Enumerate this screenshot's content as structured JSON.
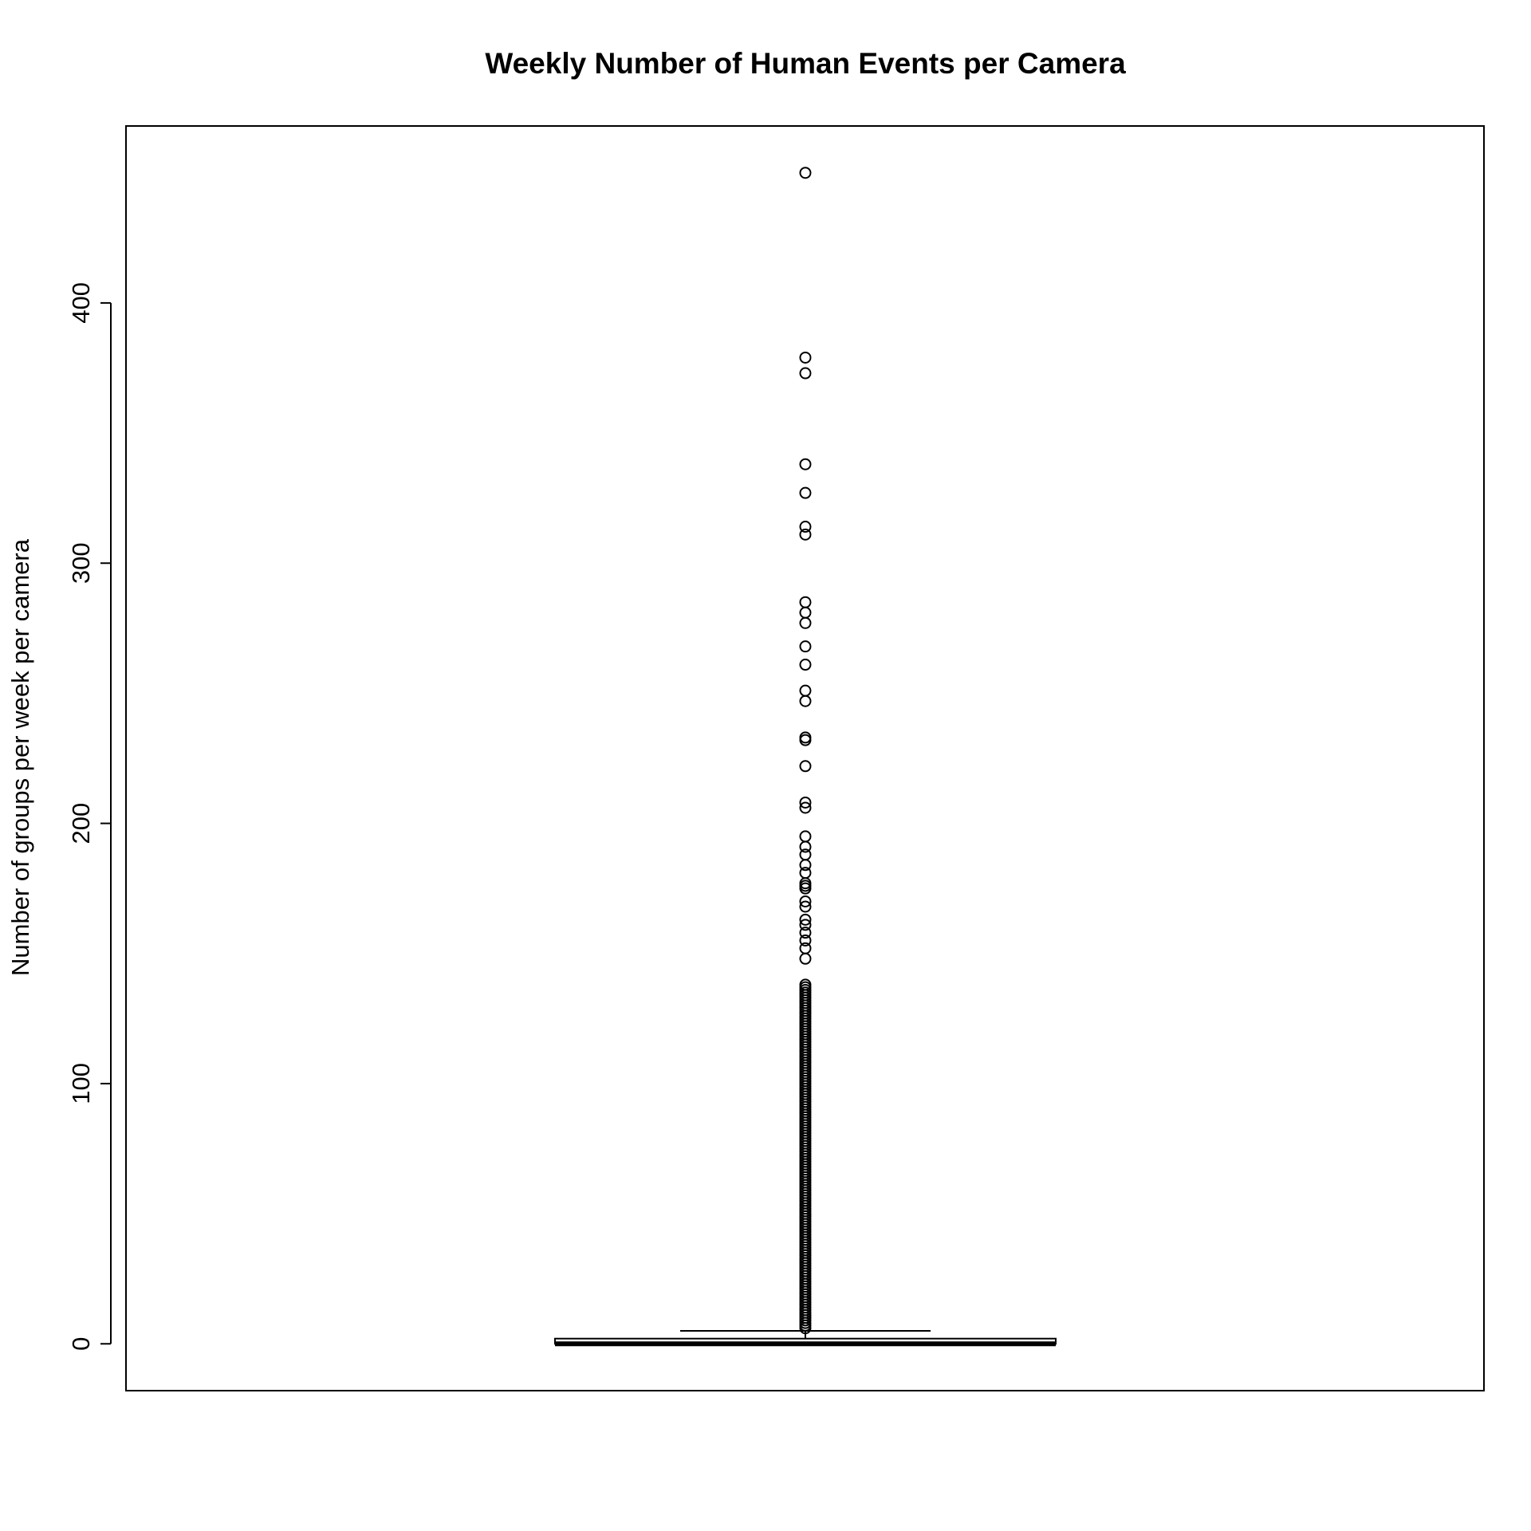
{
  "chart_data": {
    "type": "boxplot",
    "title": "Weekly Number of Human Events per Camera",
    "xlabel": "",
    "ylabel": "Number of groups per week per camera",
    "ylim": [
      -18,
      468
    ],
    "yticks": [
      0,
      100,
      200,
      300,
      400
    ],
    "grid": false,
    "legend": "none",
    "box": {
      "min": 0,
      "q1": 0,
      "median": 0,
      "q3": 2,
      "whisker_high": 5
    },
    "outliers": [
      450,
      379,
      373,
      338,
      327,
      314,
      311,
      285,
      281,
      277,
      268,
      261,
      251,
      247,
      233,
      232,
      222,
      208,
      206,
      195,
      191,
      188,
      184,
      181,
      177,
      176,
      175,
      170,
      168,
      163,
      161,
      158,
      155,
      152,
      148,
      138,
      137,
      136,
      135,
      134,
      133,
      132,
      131,
      130,
      129,
      128,
      127,
      126,
      125,
      124,
      123,
      122,
      121,
      120,
      119,
      118,
      117,
      116,
      115,
      114,
      113,
      112,
      111,
      110,
      109,
      108,
      107,
      106,
      105,
      104,
      103,
      102,
      101,
      100,
      99,
      98,
      97,
      96,
      95,
      94,
      93,
      92,
      91,
      90,
      89,
      88,
      87,
      86,
      85,
      84,
      83,
      82,
      81,
      80,
      79,
      78,
      77,
      76,
      75,
      74,
      73,
      72,
      71,
      70,
      69,
      68,
      67,
      66,
      65,
      64,
      63,
      62,
      61,
      60,
      59,
      58,
      57,
      56,
      55,
      54,
      53,
      52,
      51,
      50,
      49,
      48,
      47,
      46,
      45,
      44,
      43,
      42,
      41,
      40,
      39,
      38,
      37,
      36,
      35,
      34,
      33,
      32,
      31,
      30,
      29,
      28,
      27,
      26,
      25,
      24,
      23,
      22,
      21,
      20,
      19,
      18,
      17,
      16,
      15,
      14,
      13,
      12,
      11,
      10,
      9,
      8,
      7,
      6
    ]
  }
}
